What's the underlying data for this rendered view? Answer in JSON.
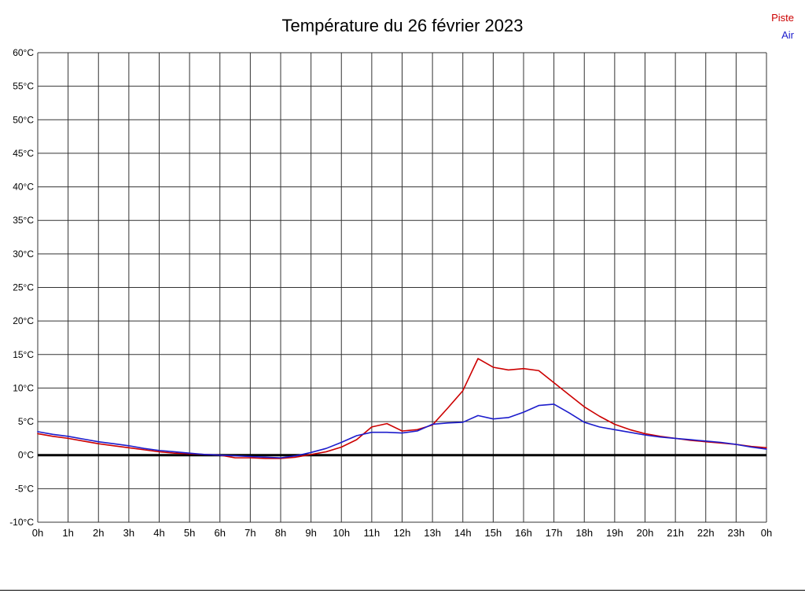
{
  "page": {
    "title": "Température du 26 février 2023"
  },
  "chart_data": {
    "type": "line",
    "title": "Température du 26 février 2023",
    "xlabel": "",
    "ylabel": "",
    "y_unit": "°C",
    "ylim": [
      -10,
      60
    ],
    "y_tick_step": 5,
    "x_range_hours": [
      0,
      24
    ],
    "x_tick_labels": [
      "0h",
      "1h",
      "2h",
      "3h",
      "4h",
      "5h",
      "6h",
      "7h",
      "8h",
      "9h",
      "10h",
      "11h",
      "12h",
      "13h",
      "14h",
      "15h",
      "16h",
      "17h",
      "18h",
      "19h",
      "20h",
      "21h",
      "22h",
      "23h",
      "0h"
    ],
    "grid": true,
    "grid_color": "#333333",
    "zero_line": {
      "value": 0,
      "color": "#000000",
      "width": 3
    },
    "legend_position": "top-right",
    "series": [
      {
        "name": "Piste",
        "color": "#cc0000",
        "points": [
          [
            0,
            3.2
          ],
          [
            0.5,
            2.8
          ],
          [
            1,
            2.5
          ],
          [
            1.5,
            2.1
          ],
          [
            2,
            1.7
          ],
          [
            2.5,
            1.4
          ],
          [
            3,
            1.1
          ],
          [
            3.5,
            0.8
          ],
          [
            4,
            0.5
          ],
          [
            4.5,
            0.3
          ],
          [
            5,
            0.2
          ],
          [
            5.5,
            0.1
          ],
          [
            6,
            0.0
          ],
          [
            6.5,
            -0.4
          ],
          [
            7,
            -0.4
          ],
          [
            7.5,
            -0.5
          ],
          [
            8,
            -0.5
          ],
          [
            8.5,
            -0.3
          ],
          [
            9,
            0.1
          ],
          [
            9.5,
            0.5
          ],
          [
            10,
            1.2
          ],
          [
            10.5,
            2.3
          ],
          [
            11,
            4.2
          ],
          [
            11.5,
            4.7
          ],
          [
            12,
            3.6
          ],
          [
            12.5,
            3.8
          ],
          [
            13,
            4.5
          ],
          [
            13.5,
            7.0
          ],
          [
            14,
            9.6
          ],
          [
            14.5,
            14.4
          ],
          [
            15,
            13.1
          ],
          [
            15.5,
            12.7
          ],
          [
            16,
            12.9
          ],
          [
            16.5,
            12.6
          ],
          [
            17,
            10.8
          ],
          [
            17.5,
            9.0
          ],
          [
            18,
            7.2
          ],
          [
            18.5,
            5.8
          ],
          [
            19,
            4.6
          ],
          [
            19.5,
            3.8
          ],
          [
            20,
            3.2
          ],
          [
            20.5,
            2.8
          ],
          [
            21,
            2.5
          ],
          [
            21.5,
            2.2
          ],
          [
            22,
            2.0
          ],
          [
            22.5,
            1.8
          ],
          [
            23,
            1.6
          ],
          [
            23.5,
            1.3
          ],
          [
            24,
            1.1
          ]
        ]
      },
      {
        "name": "Air",
        "color": "#1c1ccc",
        "points": [
          [
            0,
            3.5
          ],
          [
            0.5,
            3.1
          ],
          [
            1,
            2.8
          ],
          [
            1.5,
            2.4
          ],
          [
            2,
            2.0
          ],
          [
            2.5,
            1.7
          ],
          [
            3,
            1.4
          ],
          [
            3.5,
            1.0
          ],
          [
            4,
            0.7
          ],
          [
            4.5,
            0.5
          ],
          [
            5,
            0.3
          ],
          [
            5.5,
            0.1
          ],
          [
            6,
            0.0
          ],
          [
            6.5,
            -0.1
          ],
          [
            7,
            -0.2
          ],
          [
            7.5,
            -0.3
          ],
          [
            8,
            -0.4
          ],
          [
            8.5,
            -0.1
          ],
          [
            9,
            0.4
          ],
          [
            9.5,
            1.0
          ],
          [
            10,
            1.9
          ],
          [
            10.5,
            2.9
          ],
          [
            11,
            3.4
          ],
          [
            11.5,
            3.4
          ],
          [
            12,
            3.3
          ],
          [
            12.5,
            3.6
          ],
          [
            13,
            4.6
          ],
          [
            13.5,
            4.8
          ],
          [
            14,
            4.9
          ],
          [
            14.5,
            5.9
          ],
          [
            15,
            5.4
          ],
          [
            15.5,
            5.6
          ],
          [
            16,
            6.4
          ],
          [
            16.5,
            7.4
          ],
          [
            17,
            7.6
          ],
          [
            17.5,
            6.3
          ],
          [
            18,
            4.9
          ],
          [
            18.5,
            4.2
          ],
          [
            19,
            3.8
          ],
          [
            19.5,
            3.4
          ],
          [
            20,
            3.0
          ],
          [
            20.5,
            2.7
          ],
          [
            21,
            2.5
          ],
          [
            21.5,
            2.3
          ],
          [
            22,
            2.1
          ],
          [
            22.5,
            1.9
          ],
          [
            23,
            1.6
          ],
          [
            23.5,
            1.2
          ],
          [
            24,
            0.9
          ]
        ]
      }
    ]
  }
}
